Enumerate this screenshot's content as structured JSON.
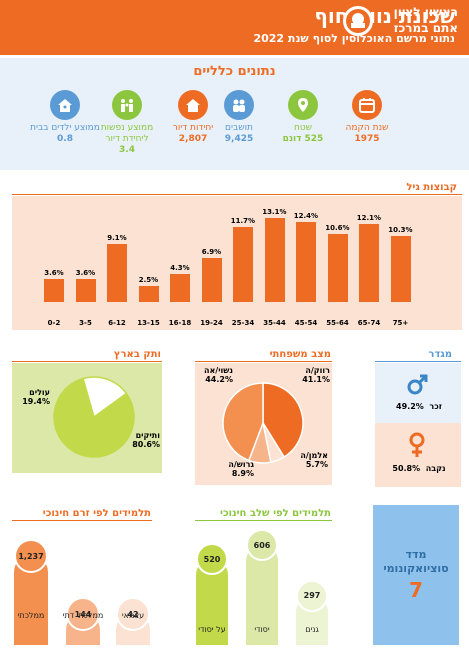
{
  "header": {
    "title": "שכונת נווה חוף",
    "subtitle": "נתוני מרשם האוכלוסין לסוף שנת 2022",
    "logo_line1": "ראשון לציון",
    "logo_line2": "אתם במרכז"
  },
  "general": {
    "title": "נתונים כלליים",
    "stats": [
      {
        "label": "שנת הקמה",
        "value": "1975",
        "icon": "calendar-icon",
        "color": "#ee6b23"
      },
      {
        "label": "שטח",
        "value": "525 דונם",
        "icon": "location-pin-icon",
        "color": "#8cc63f"
      },
      {
        "label": "תושבים",
        "value": "9,425",
        "icon": "people-icon",
        "color": "#5b9bd5"
      },
      {
        "label": "יחידות דיור",
        "value": "2,807",
        "icon": "house-icon",
        "color": "#ee6b23"
      },
      {
        "label": "ממוצע נפשות ליחידת דיור",
        "value": "3.4",
        "icon": "family-icon",
        "color": "#8cc63f"
      },
      {
        "label": "ממוצע ילדים בבית",
        "value": "0.8",
        "icon": "child-house-icon",
        "color": "#5b9bd5"
      }
    ]
  },
  "chart_data": [
    {
      "type": "bar",
      "title": "קבוצות גיל",
      "categories": [
        "0-2",
        "3-5",
        "6-12",
        "13-15",
        "16-18",
        "19-24",
        "25-34",
        "35-44",
        "45-54",
        "55-64",
        "65-74",
        "75+"
      ],
      "values": [
        3.6,
        3.6,
        9.1,
        2.5,
        4.3,
        6.9,
        11.7,
        13.1,
        12.4,
        10.6,
        12.1,
        10.3
      ],
      "labels": [
        "3.6%",
        "3.6%",
        "9.1%",
        "2.5%",
        "4.3%",
        "6.9%",
        "11.7%",
        "13.1%",
        "12.4%",
        "10.6%",
        "12.1%",
        "10.3%"
      ],
      "ylim": [
        0,
        14
      ],
      "color": "#ee6b23"
    },
    {
      "type": "pie",
      "title": "ותק בארץ",
      "slices": [
        {
          "name": "ותיקים",
          "value": 80.6,
          "label": "80.6%",
          "color": "#c2d94a"
        },
        {
          "name": "עולים",
          "value": 19.4,
          "label": "19.4%",
          "color": "#ffffff"
        }
      ]
    },
    {
      "type": "pie",
      "title": "מצב משפחתי",
      "slices": [
        {
          "name": "רווק/ה",
          "value": 41.1,
          "label": "41.1%",
          "color": "#ee6b23"
        },
        {
          "name": "אלמן/ה",
          "value": 5.7,
          "label": "5.7%",
          "color": "#fbe2d2"
        },
        {
          "name": "גרוש/ה",
          "value": 8.9,
          "label": "8.9%",
          "color": "#f5b48a"
        },
        {
          "name": "נשוי/אה",
          "value": 44.2,
          "label": "44.2%",
          "color": "#f39050"
        }
      ]
    },
    {
      "type": "bar",
      "title": "תלמידים לפי זרם חינוכי",
      "categories": [
        "ממלכתי",
        "ממלכתי דתי",
        "עצמאי"
      ],
      "values": [
        1237,
        144,
        42
      ],
      "labels": [
        "1,237",
        "144",
        "42"
      ],
      "colors": [
        "#f39050",
        "#f7b48a",
        "#fbe2d2"
      ]
    },
    {
      "type": "bar",
      "title": "תלמידים לפי שלב חינוכי",
      "categories": [
        "על יסודי",
        "יסודי",
        "גנים"
      ],
      "values": [
        520,
        606,
        297
      ],
      "labels": [
        "520",
        "606",
        "297"
      ],
      "colors": [
        "#c2d94a",
        "#dbe8a8",
        "#edf4d4"
      ]
    }
  ],
  "gender": {
    "title": "מגדר",
    "male_label": "זכר",
    "male_value": "49.2%",
    "female_label": "נקבה",
    "female_value": "50.8%"
  },
  "socio": {
    "title": "מדד סוציואקונומי",
    "value": "7"
  }
}
